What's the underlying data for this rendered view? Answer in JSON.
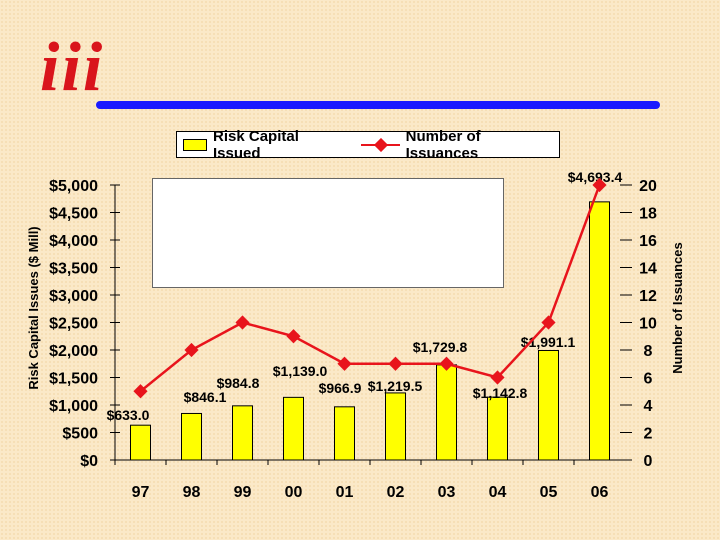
{
  "colors": {
    "background": "#fbe9c8",
    "bar_fill": "#ffff00",
    "line_color": "#e8141c",
    "logo_red": "#d9141c",
    "divider_blue": "#1a1aff"
  },
  "logo": {
    "text": "iii"
  },
  "legend": {
    "bar_label": "Risk Capital Issued",
    "line_label": "Number of Issuances"
  },
  "chart_data": {
    "type": "bar",
    "categories": [
      "97",
      "98",
      "99",
      "00",
      "01",
      "02",
      "03",
      "04",
      "05",
      "06"
    ],
    "series": [
      {
        "name": "Risk Capital Issued",
        "axis": "left",
        "values": [
          633.0,
          846.1,
          984.8,
          1139.0,
          966.9,
          1219.5,
          1729.8,
          1142.8,
          1991.1,
          4693.4
        ],
        "data_labels": [
          "$633.0",
          "$846.1",
          "$984.8",
          "$1,139.0",
          "$966.9",
          "$1,219.5",
          "$1,729.8",
          "$1,142.8",
          "$1,991.1",
          "$4,693.4"
        ]
      },
      {
        "name": "Number of Issuances",
        "axis": "right",
        "type": "line",
        "values": [
          5,
          8,
          10,
          9,
          7,
          7,
          7,
          6,
          10,
          20
        ]
      }
    ],
    "ylabel": "Risk Capital Issues ($ Mill)",
    "y2label": "Number of Issuances",
    "ylim": [
      0,
      5000
    ],
    "y2lim": [
      0,
      20
    ],
    "yticks": [
      "$0",
      "$500",
      "$1,000",
      "$1,500",
      "$2,000",
      "$2,500",
      "$3,000",
      "$3,500",
      "$4,000",
      "$4,500",
      "$5,000"
    ],
    "y2ticks": [
      "0",
      "2",
      "4",
      "6",
      "8",
      "10",
      "12",
      "14",
      "16",
      "18",
      "20"
    ],
    "legend": "top",
    "grid": false
  }
}
